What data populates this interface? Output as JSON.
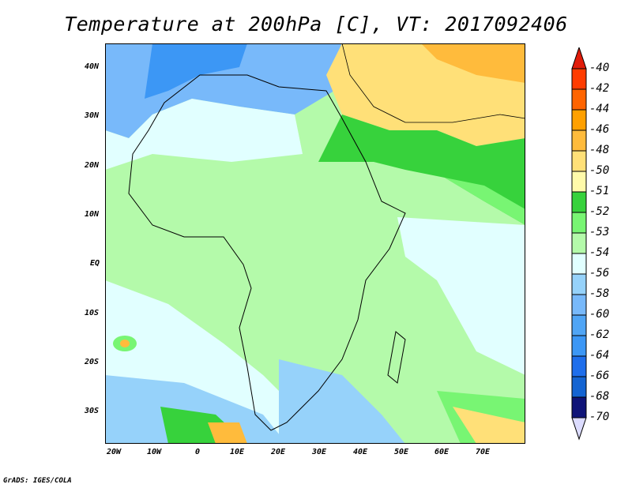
{
  "title": "Temperature at 200hPa [C], VT: 2017092406",
  "credit": "GrADS: IGES/COLA",
  "x_ticks": [
    "20W",
    "10W",
    "0",
    "10E",
    "20E",
    "30E",
    "40E",
    "50E",
    "60E",
    "70E"
  ],
  "y_ticks": [
    "40N",
    "30N",
    "20N",
    "10N",
    "EQ",
    "10S",
    "20S",
    "30S"
  ],
  "colorbar": {
    "labels": [
      "-40",
      "-42",
      "-44",
      "-46",
      "-48",
      "-50",
      "-51",
      "-52",
      "-53",
      "-54",
      "-56",
      "-58",
      "-60",
      "-62",
      "-64",
      "-66",
      "-68",
      "-70"
    ],
    "colors": [
      "#ff3c00",
      "#ff6400",
      "#ffa000",
      "#ffbb3c",
      "#ffe078",
      "#fffaaa",
      "#37d23c",
      "#78f573",
      "#b4faaa",
      "#e1ffff",
      "#96d2fa",
      "#78b9fa",
      "#50a5f5",
      "#3c97f5",
      "#1e6eeb",
      "#1464d2",
      "#0f1478"
    ],
    "over_color": "#e11c0a",
    "under_color": "#dcdcff"
  }
}
